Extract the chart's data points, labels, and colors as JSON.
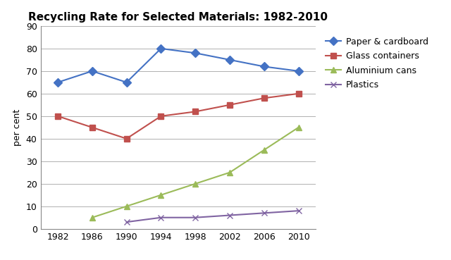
{
  "title": "Recycling Rate for Selected Materials: 1982-2010",
  "ylabel": "per cent",
  "years": [
    1982,
    1986,
    1990,
    1994,
    1998,
    2002,
    2006,
    2010
  ],
  "series": [
    {
      "label": "Paper & cardboard",
      "values": [
        65,
        70,
        65,
        80,
        78,
        75,
        72,
        70
      ],
      "color": "#4472C4",
      "marker": "D",
      "markersize": 6,
      "linewidth": 1.5
    },
    {
      "label": "Glass containers",
      "values": [
        50,
        45,
        40,
        50,
        52,
        55,
        58,
        60
      ],
      "color": "#C0504D",
      "marker": "s",
      "markersize": 6,
      "linewidth": 1.5
    },
    {
      "label": "Aluminium cans",
      "values": [
        null,
        5,
        10,
        15,
        20,
        25,
        35,
        45
      ],
      "color": "#9BBB59",
      "marker": "^",
      "markersize": 6,
      "linewidth": 1.5
    },
    {
      "label": "Plastics",
      "values": [
        null,
        null,
        3,
        5,
        5,
        6,
        7,
        8
      ],
      "color": "#8064A2",
      "marker": "x",
      "markersize": 6,
      "linewidth": 1.5
    }
  ],
  "ylim": [
    0,
    90
  ],
  "yticks": [
    0,
    10,
    20,
    30,
    40,
    50,
    60,
    70,
    80,
    90
  ],
  "background_color": "#ffffff",
  "grid_color": "#b0b0b0",
  "title_fontsize": 11,
  "label_fontsize": 9,
  "tick_fontsize": 9
}
